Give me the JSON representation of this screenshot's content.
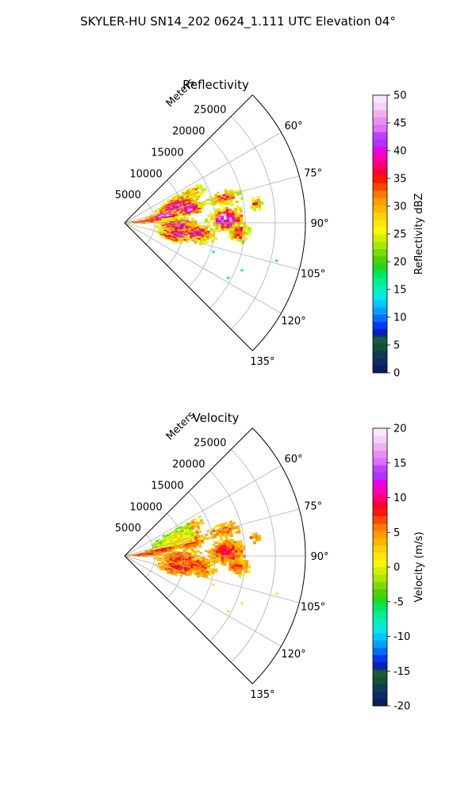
{
  "figure_title": "SKYLER-HU  SN14_202  0624_1.111 UTC Elevation 04°",
  "chart_data": [
    {
      "type": "heatmap",
      "subtype": "polar-sector-radar-ppi",
      "title": "Reflectivity",
      "radial_label": "Meters",
      "r_range": [
        0,
        30000
      ],
      "r_ticks": [
        "5000",
        "10000",
        "15000",
        "20000",
        "25000"
      ],
      "theta_range_deg": [
        45,
        135
      ],
      "theta_ticks": [
        "60°",
        "75°",
        "90°",
        "105°",
        "120°",
        "135°"
      ],
      "grid": true,
      "colorbar": {
        "label": "Reflectivity dBZ",
        "range": [
          0,
          50
        ],
        "ticks": [
          "0",
          "5",
          "10",
          "15",
          "20",
          "25",
          "30",
          "35",
          "40",
          "45",
          "50"
        ],
        "colors": [
          "#0a1f5c",
          "#0c2b66",
          "#0f3a55",
          "#13503a",
          "#155c38",
          "#0f1fb0",
          "#0037ff",
          "#006eff",
          "#00a0ff",
          "#00c8ff",
          "#00e8e8",
          "#00f0c0",
          "#00f090",
          "#00e860",
          "#20d820",
          "#50d000",
          "#78dc00",
          "#a8e800",
          "#d0f000",
          "#f8f800",
          "#ffe800",
          "#ffd000",
          "#ffb400",
          "#ff9a00",
          "#ff7800",
          "#ff4800",
          "#ff1800",
          "#ff0030",
          "#ff0070",
          "#ff00b0",
          "#e800e8",
          "#b030ff",
          "#c040ff",
          "#e070ff",
          "#e890f0",
          "#f0b0f0",
          "#f6d0f6",
          "#fbe8fb"
        ]
      }
    },
    {
      "type": "heatmap",
      "subtype": "polar-sector-radar-ppi",
      "title": "Velocity",
      "radial_label": "Meters",
      "r_range": [
        0,
        30000
      ],
      "r_ticks": [
        "5000",
        "10000",
        "15000",
        "20000",
        "25000"
      ],
      "theta_range_deg": [
        45,
        135
      ],
      "theta_ticks": [
        "60°",
        "75°",
        "90°",
        "105°",
        "120°",
        "135°"
      ],
      "grid": true,
      "colorbar": {
        "label": "Velocity (m/s)",
        "range": [
          -20,
          20
        ],
        "ticks": [
          "-20",
          "-15",
          "-10",
          "-5",
          "0",
          "5",
          "10",
          "15",
          "20"
        ],
        "colors": [
          "#0a1f5c",
          "#0c2b66",
          "#0f3a55",
          "#13503a",
          "#155c38",
          "#0f1fb0",
          "#0037ff",
          "#006eff",
          "#00a0ff",
          "#00c8ff",
          "#00e8e8",
          "#00f0c0",
          "#00f090",
          "#00e860",
          "#20d820",
          "#50d000",
          "#78dc00",
          "#a8e800",
          "#d0f000",
          "#f8f800",
          "#ffe800",
          "#ffd000",
          "#ffb400",
          "#ff9a00",
          "#ff7800",
          "#ff4800",
          "#ff1800",
          "#ff0030",
          "#ff0070",
          "#ff00b0",
          "#e800e8",
          "#b030ff",
          "#c040ff",
          "#e070ff",
          "#e890f0",
          "#f0b0f0",
          "#f6d0f6",
          "#fbe8fb"
        ]
      }
    }
  ]
}
